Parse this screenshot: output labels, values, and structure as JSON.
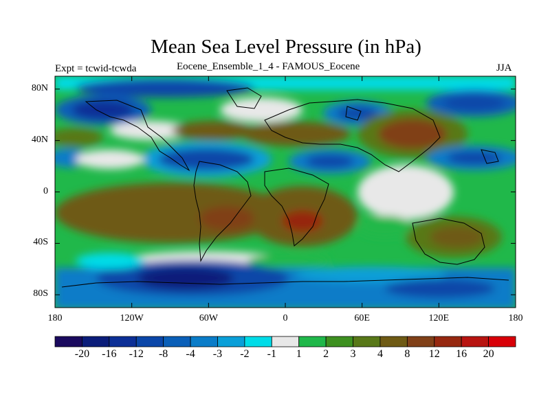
{
  "title": "Mean Sea Level Pressure (in hPa)",
  "subtitle_left": "Expt = tcwid-tcwda",
  "subtitle_center": "Eocene_Ensemble_1_4 - FAMOUS_Eocene",
  "subtitle_right": "JJA",
  "map": {
    "projection": "cylindrical-equidistant",
    "lon_range": [
      -180,
      180
    ],
    "lat_range": [
      -90,
      90
    ],
    "lat_ticks": [
      "80N",
      "40N",
      "0",
      "40S",
      "80S"
    ],
    "lat_values": [
      80,
      40,
      0,
      -40,
      -80
    ],
    "lon_ticks": [
      "180",
      "120W",
      "60W",
      "0",
      "60E",
      "120E",
      "180"
    ],
    "lon_values": [
      -180,
      -120,
      -60,
      0,
      60,
      120,
      180
    ]
  },
  "colorbar": {
    "labels": [
      "-20",
      "-16",
      "-12",
      "-8",
      "-4",
      "-3",
      "-2",
      "-1",
      "1",
      "2",
      "3",
      "4",
      "8",
      "12",
      "16",
      "20"
    ],
    "colors": [
      "#1a0a5e",
      "#0b1d7a",
      "#0c2f96",
      "#0a46a8",
      "#0a5fb8",
      "#0a7cc8",
      "#0a9fd8",
      "#00dce8",
      "#e8e8e8",
      "#20b84a",
      "#3d9020",
      "#587818",
      "#6e5a14",
      "#804018",
      "#962810",
      "#b81410",
      "#d80008"
    ]
  }
}
